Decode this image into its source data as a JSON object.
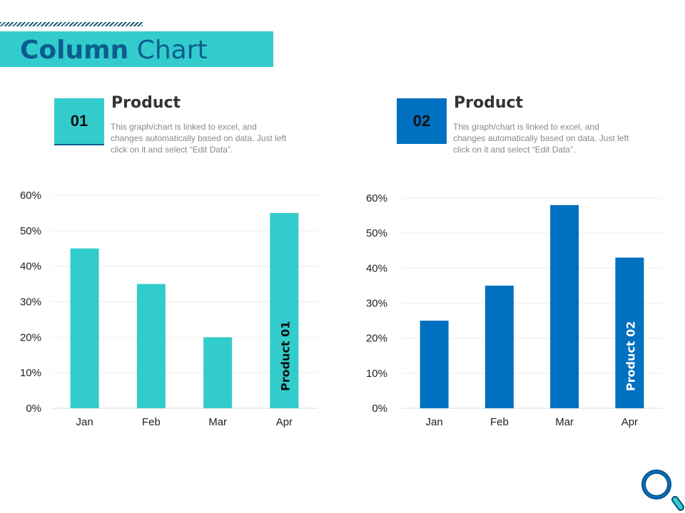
{
  "header": {
    "title_bold": "Column",
    "title_regular": "Chart"
  },
  "colors": {
    "teal": "#33cccc",
    "blue": "#0070c0",
    "title": "#0b5d8f"
  },
  "products": [
    {
      "number": "01",
      "title": "Product",
      "description": "This graph/chart is linked to excel, and changes automatically based on data. Just left click on it and select “Edit Data”."
    },
    {
      "number": "02",
      "title": "Product",
      "description": "This graph/chart is linked to excel, and changes automatically based on data. Just left click on it and select “Edit Data”."
    }
  ],
  "icon": "magnifier-icon",
  "chart_data": [
    {
      "type": "bar",
      "categories": [
        "Jan",
        "Feb",
        "Mar",
        "Apr"
      ],
      "series": [
        {
          "name": "Product 01",
          "values": [
            45,
            35,
            20,
            55
          ]
        }
      ],
      "ylim": [
        0,
        60
      ],
      "yticks": [
        "0%",
        "10%",
        "20%",
        "30%",
        "40%",
        "50%",
        "60%"
      ],
      "grid": true,
      "color": "#33cccc"
    },
    {
      "type": "bar",
      "categories": [
        "Jan",
        "Feb",
        "Mar",
        "Apr"
      ],
      "series": [
        {
          "name": "Product 02",
          "values": [
            25,
            35,
            58,
            43
          ]
        }
      ],
      "ylim": [
        0,
        60
      ],
      "yticks": [
        "0%",
        "10%",
        "20%",
        "30%",
        "40%",
        "50%",
        "60%"
      ],
      "grid": true,
      "color": "#0070c0"
    }
  ]
}
